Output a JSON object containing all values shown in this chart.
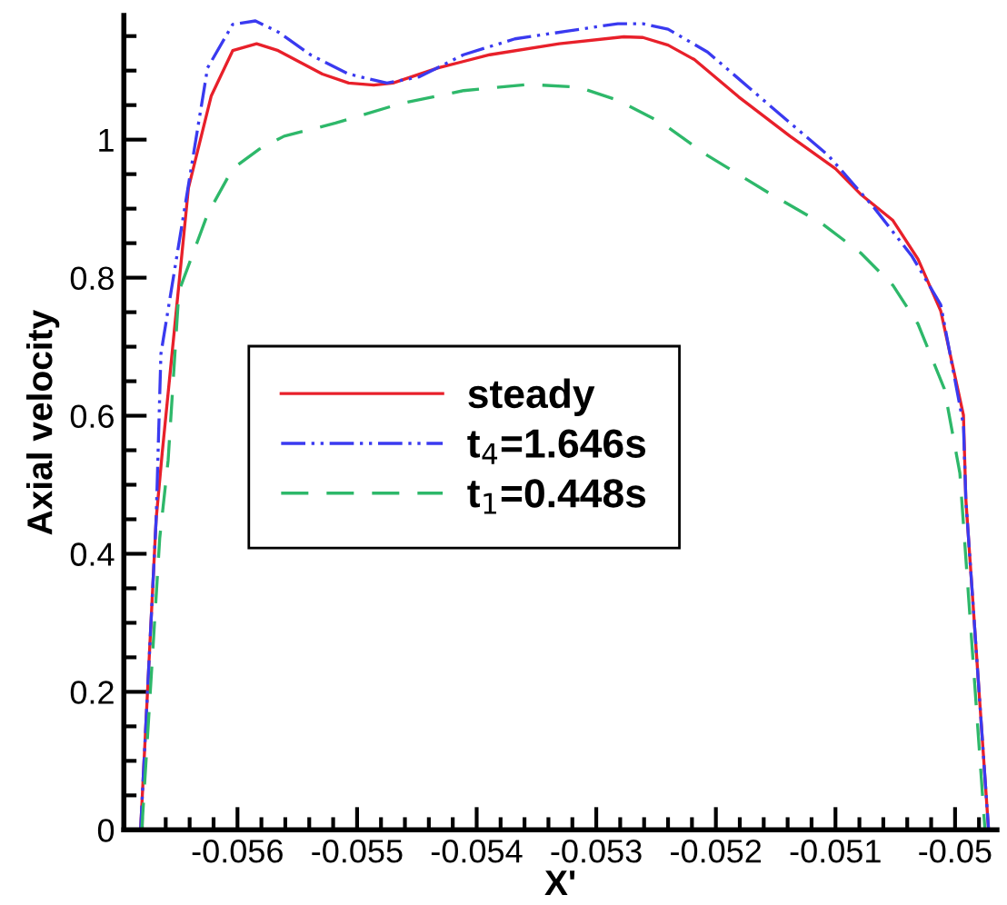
{
  "chart_data": {
    "type": "line",
    "xlabel": "X'",
    "ylabel": "Axial velocity",
    "xlim": [
      -0.05695,
      -0.04965
    ],
    "ylim": [
      0,
      1.18
    ],
    "xticks": [
      -0.056,
      -0.055,
      -0.054,
      -0.053,
      -0.052,
      -0.051,
      -0.05
    ],
    "yticks": [
      0,
      0.2,
      0.4,
      0.6,
      0.8,
      1
    ],
    "grid": false,
    "legend": "center left",
    "series": [
      {
        "name": "steady",
        "color": "#e8202a",
        "line_style": "solid",
        "x": [
          -0.05681,
          -0.05668,
          -0.05663,
          -0.05641,
          -0.05622,
          -0.05604,
          -0.05584,
          -0.05566,
          -0.05529,
          -0.05507,
          -0.05486,
          -0.0547,
          -0.05432,
          -0.05389,
          -0.05331,
          -0.05277,
          -0.05261,
          -0.0524,
          -0.05218,
          -0.05181,
          -0.05138,
          -0.051,
          -0.05079,
          -0.05052,
          -0.05031,
          -0.05012,
          -0.04993,
          -0.04991,
          -0.04972
        ],
        "values": [
          0,
          0.45,
          0.545,
          0.93,
          1.063,
          1.129,
          1.139,
          1.129,
          1.095,
          1.082,
          1.079,
          1.082,
          1.104,
          1.123,
          1.139,
          1.149,
          1.148,
          1.137,
          1.116,
          1.062,
          1.005,
          0.958,
          0.921,
          0.883,
          0.827,
          0.752,
          0.601,
          0.479,
          0
        ]
      },
      {
        "name": "t$_{4}$=1.646s",
        "color": "#3a3af0",
        "line_style": "dashdotdot",
        "x": [
          -0.05681,
          -0.05668,
          -0.05664,
          -0.05625,
          -0.05604,
          -0.05585,
          -0.05566,
          -0.05539,
          -0.05507,
          -0.05475,
          -0.05448,
          -0.05411,
          -0.05368,
          -0.05325,
          -0.05282,
          -0.05261,
          -0.0524,
          -0.05207,
          -0.05154,
          -0.05106,
          -0.05068,
          -0.05036,
          -0.05012,
          -0.04993,
          -0.04991,
          -0.04972
        ],
        "values": [
          0,
          0.45,
          0.69,
          1.104,
          1.167,
          1.172,
          1.156,
          1.123,
          1.095,
          1.082,
          1.091,
          1.123,
          1.146,
          1.157,
          1.168,
          1.168,
          1.16,
          1.127,
          1.048,
          0.977,
          0.902,
          0.831,
          0.761,
          0.587,
          0.479,
          0
        ]
      },
      {
        "name": "t$_{1}$=0.448s",
        "color": "#2eb86a",
        "line_style": "dashed",
        "x": [
          -0.0568,
          -0.05665,
          -0.05658,
          -0.05649,
          -0.05625,
          -0.05604,
          -0.05582,
          -0.05561,
          -0.05518,
          -0.05464,
          -0.05411,
          -0.05357,
          -0.05315,
          -0.05282,
          -0.05245,
          -0.05207,
          -0.05154,
          -0.05111,
          -0.05079,
          -0.05052,
          -0.05031,
          -0.05009,
          -0.04996,
          -0.04975
        ],
        "values": [
          0,
          0.423,
          0.535,
          0.78,
          0.892,
          0.958,
          0.986,
          1.005,
          1.024,
          1.052,
          1.071,
          1.08,
          1.076,
          1.057,
          1.024,
          0.977,
          0.921,
          0.878,
          0.836,
          0.789,
          0.733,
          0.639,
          0.517,
          0
        ]
      }
    ]
  }
}
